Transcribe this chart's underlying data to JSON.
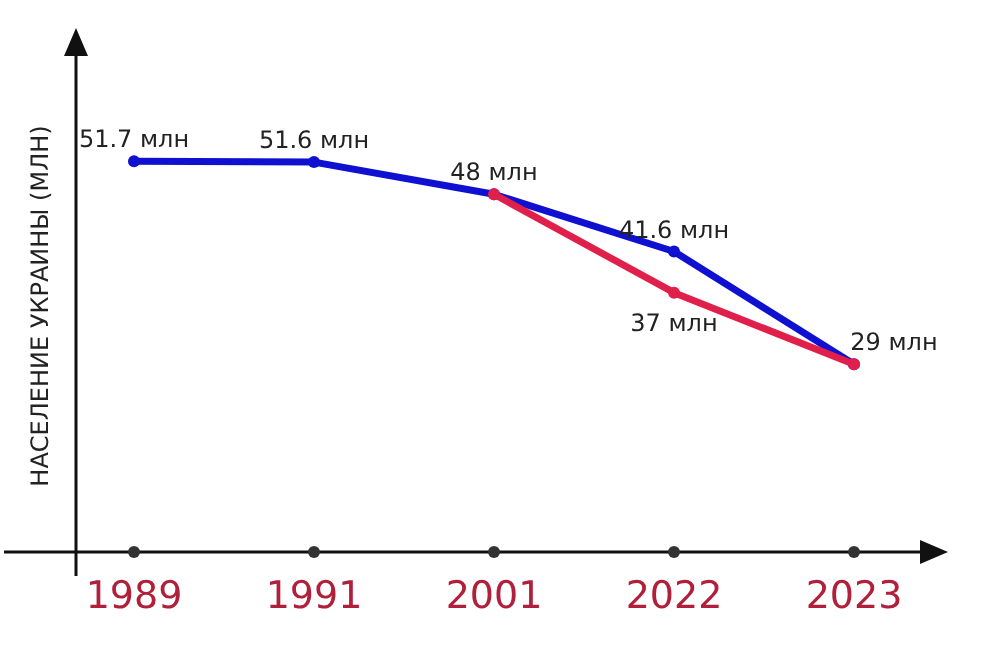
{
  "chart_data": {
    "type": "line",
    "ylabel": "НАСЕЛЕНИЕ УКРАИНЫ (МЛН)",
    "categories": [
      "1989",
      "1991",
      "2001",
      "2022",
      "2023"
    ],
    "tick_labels": "x",
    "marker": "circle",
    "line_style": "solid",
    "series": [
      {
        "color": "#1010d0",
        "values": [
          51.7,
          51.6,
          48,
          41.6,
          29
        ],
        "value_labels": [
          "51.7 млн",
          "51.6 млн",
          "48 млн",
          "41.6 млн",
          "29 млн"
        ]
      },
      {
        "color": "#e0204a",
        "values": [
          null,
          null,
          48,
          37,
          29
        ],
        "value_labels": [
          null,
          null,
          null,
          "37 млн",
          null
        ]
      }
    ]
  }
}
